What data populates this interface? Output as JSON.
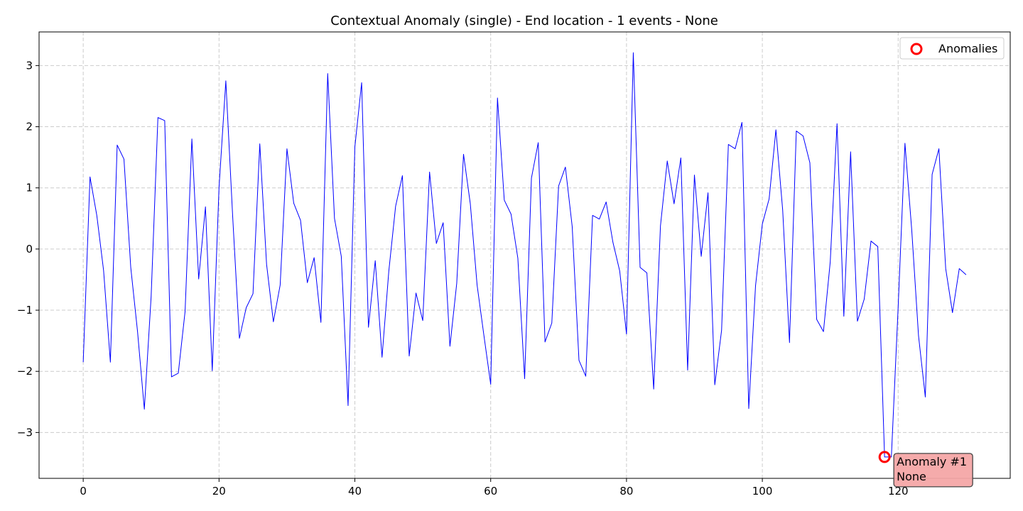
{
  "chart_data": {
    "type": "line",
    "title": "Contextual Anomaly (single) - End location - 1 events - None",
    "xlabel": "",
    "ylabel": "",
    "xlim": [
      -6.5,
      136.5
    ],
    "ylim": [
      -3.75,
      3.55
    ],
    "x_ticks": [
      0,
      20,
      40,
      60,
      80,
      100,
      120
    ],
    "y_ticks": [
      -3,
      -2,
      -1,
      0,
      1,
      2,
      3
    ],
    "grid": true,
    "legend": {
      "position": "top-right",
      "entries": [
        "Anomalies"
      ]
    },
    "colors": {
      "series": "#0000ff",
      "anomaly": "#ff0000",
      "annotation_fill": "#f4a6a6",
      "grid": "#cccccc"
    },
    "series": [
      {
        "x": [
          0,
          1,
          2,
          3,
          4,
          5,
          6,
          7,
          8,
          9,
          10,
          11,
          12,
          13,
          14,
          15,
          16,
          17,
          18,
          19,
          20,
          21,
          22,
          23,
          24,
          25,
          26,
          27,
          28,
          29,
          30,
          31,
          32,
          33,
          34,
          35,
          36,
          37,
          38,
          39,
          40,
          41,
          42,
          43,
          44,
          45,
          46,
          47,
          48,
          49,
          50,
          51,
          52,
          53,
          54,
          55,
          56,
          57,
          58,
          59,
          60,
          61,
          62,
          63,
          64,
          65,
          66,
          67,
          68,
          69,
          70,
          71,
          72,
          73,
          74,
          75,
          76,
          77,
          78,
          79,
          80,
          81,
          82,
          83,
          84,
          85,
          86,
          87,
          88,
          89,
          90,
          91,
          92,
          93,
          94,
          95,
          96,
          97,
          98,
          99,
          100,
          101,
          102,
          103,
          104,
          105,
          106,
          107,
          108,
          109,
          110,
          111,
          112,
          113,
          114,
          115,
          116,
          117,
          118,
          119,
          120,
          121,
          122,
          123,
          124,
          125,
          126,
          127,
          128,
          129,
          130
        ],
        "values": [
          -1.85,
          1.18,
          0.55,
          -0.35,
          -1.85,
          1.7,
          1.47,
          -0.3,
          -1.35,
          -2.62,
          -0.78,
          2.15,
          2.1,
          -2.09,
          -2.03,
          -1.02,
          1.8,
          -0.49,
          0.69,
          -1.99,
          1.01,
          2.75,
          0.55,
          -1.46,
          -0.96,
          -0.73,
          1.72,
          -0.25,
          -1.19,
          -0.59,
          1.64,
          0.75,
          0.47,
          -0.55,
          -0.14,
          -1.2,
          2.87,
          0.5,
          -0.12,
          -2.56,
          1.67,
          2.72,
          -1.28,
          -0.19,
          -1.77,
          -0.36,
          0.7,
          1.2,
          -1.75,
          -0.72,
          -1.17,
          1.26,
          0.09,
          0.43,
          -1.59,
          -0.56,
          1.55,
          0.74,
          -0.59,
          -1.41,
          -2.21,
          2.47,
          0.8,
          0.57,
          -0.15,
          -2.12,
          1.16,
          1.74,
          -1.52,
          -1.21,
          1.03,
          1.34,
          0.37,
          -1.82,
          -2.08,
          0.55,
          0.49,
          0.77,
          0.11,
          -0.36,
          -1.39,
          3.21,
          -0.3,
          -0.39,
          -2.29,
          0.38,
          1.44,
          0.74,
          1.49,
          -1.98,
          1.21,
          -0.12,
          0.92,
          -2.22,
          -1.33,
          1.71,
          1.64,
          2.07,
          -2.61,
          -0.6,
          0.41,
          0.82,
          1.95,
          0.63,
          -1.53,
          1.93,
          1.85,
          1.41,
          -1.15,
          -1.35,
          -0.21,
          2.05,
          -1.1,
          1.59,
          -1.18,
          -0.82,
          0.13,
          0.04,
          -3.4,
          -3.4,
          -0.95,
          1.73,
          0.31,
          -1.42,
          -2.42,
          1.22,
          1.64,
          -0.32,
          -1.04,
          -0.32,
          -0.42
        ]
      }
    ],
    "anomalies": [
      {
        "x": 118,
        "y": -3.4
      }
    ],
    "annotations": [
      {
        "x": 118,
        "y": -3.4,
        "line1": "Anomaly #1",
        "line2": "None"
      }
    ]
  }
}
